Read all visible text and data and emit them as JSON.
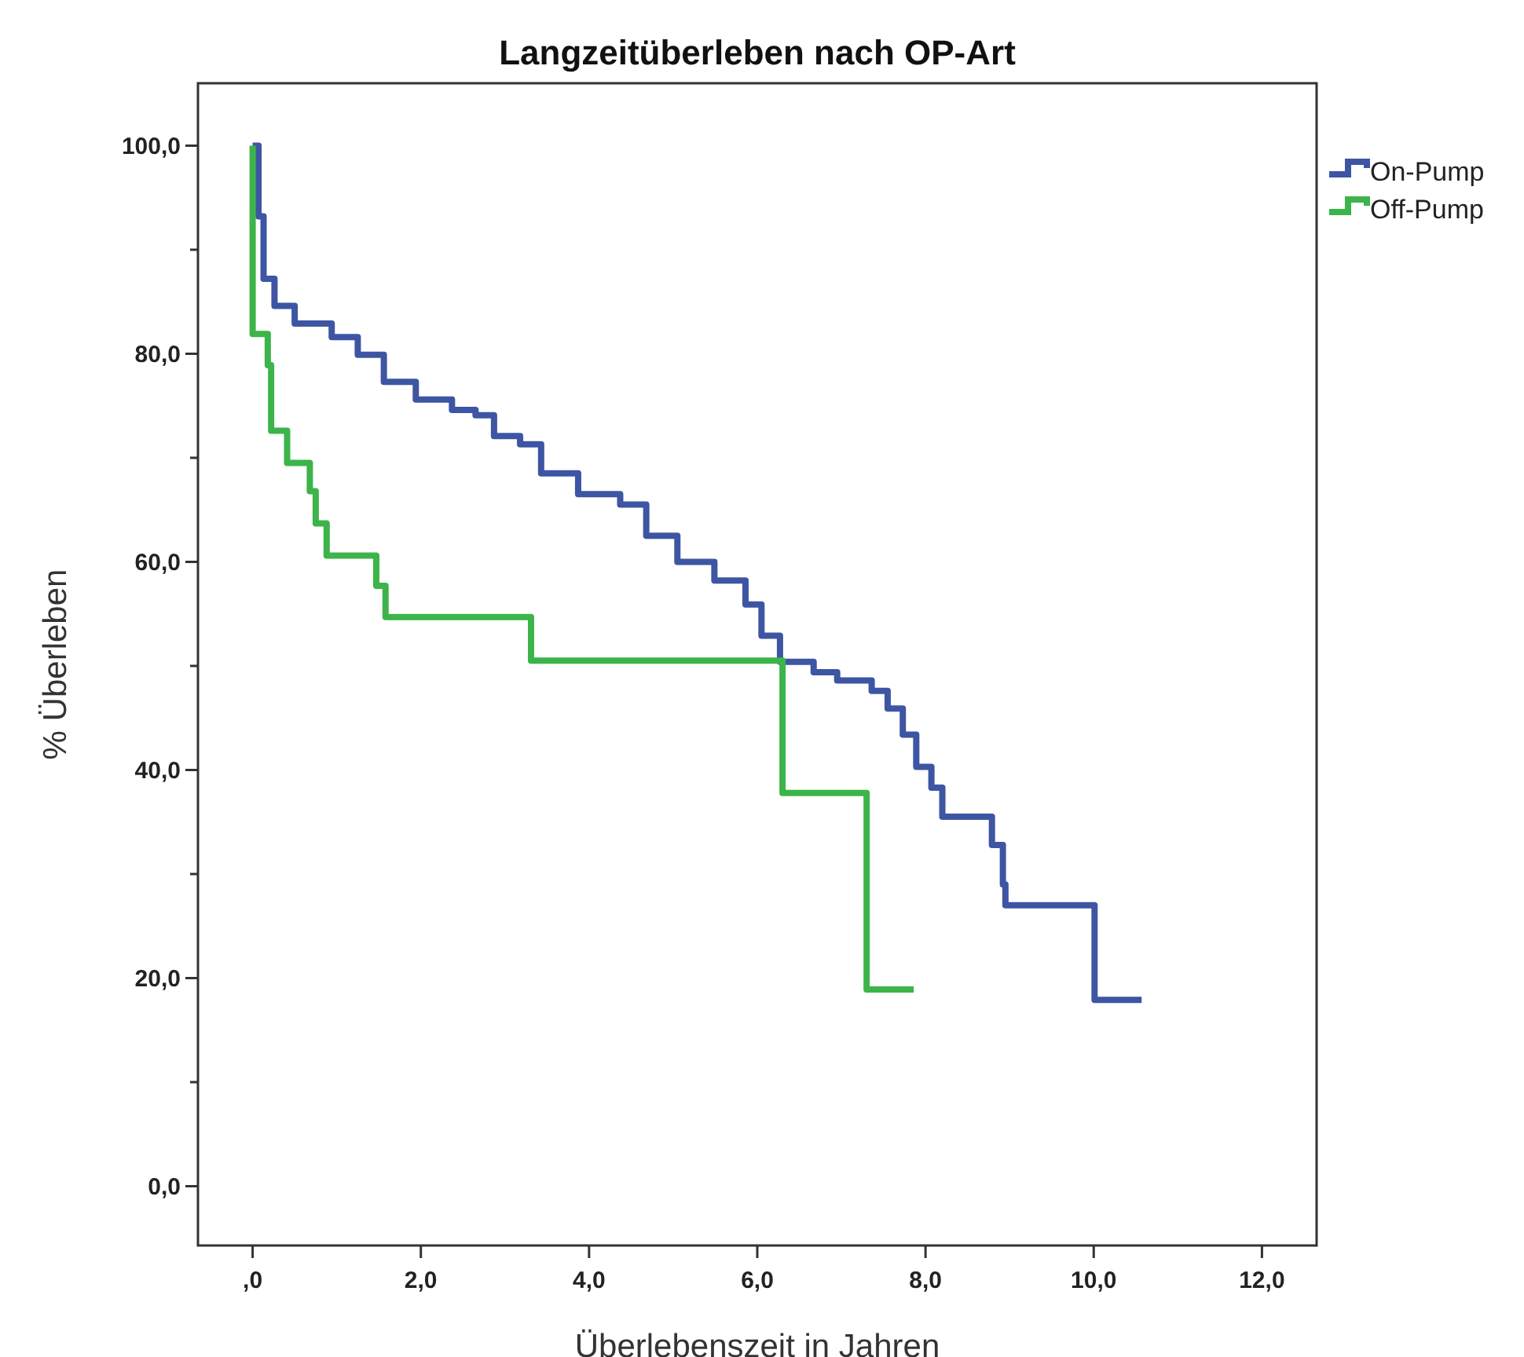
{
  "chart_data": {
    "type": "step",
    "title": "Langzeitüberleben nach OP-Art",
    "xlabel": "Überlebenszeit in Jahren",
    "ylabel": "% Überleben",
    "xlim": [
      -0.65,
      12.65
    ],
    "ylim": [
      -5.7,
      106
    ],
    "xticks": [
      {
        "value": 0,
        "label": ",0"
      },
      {
        "value": 2,
        "label": "2,0"
      },
      {
        "value": 4,
        "label": "4,0"
      },
      {
        "value": 6,
        "label": "6,0"
      },
      {
        "value": 8,
        "label": "8,0"
      },
      {
        "value": 10,
        "label": "10,0"
      },
      {
        "value": 12,
        "label": "12,0"
      }
    ],
    "yticks": [
      {
        "value": 0,
        "label": "0,0"
      },
      {
        "value": 10,
        "label": null
      },
      {
        "value": 20,
        "label": "20,0"
      },
      {
        "value": 30,
        "label": null
      },
      {
        "value": 40,
        "label": "40,0"
      },
      {
        "value": 50,
        "label": null
      },
      {
        "value": 60,
        "label": "60,0"
      },
      {
        "value": 70,
        "label": null
      },
      {
        "value": 80,
        "label": "80,0"
      },
      {
        "value": 90,
        "label": null
      },
      {
        "value": 100,
        "label": "100,0"
      }
    ],
    "legend": "top right",
    "grid": false,
    "series": [
      {
        "name": "On-Pump",
        "color": "#3d55a3",
        "x": [
          0,
          0.02,
          0.07,
          0.13,
          0.26,
          0.5,
          0.94,
          1.25,
          1.56,
          1.94,
          2.37,
          2.65,
          2.87,
          3.18,
          3.43,
          3.87,
          4.37,
          4.68,
          5.05,
          5.49,
          5.86,
          6.05,
          6.27,
          6.67,
          6.95,
          7.36,
          7.55,
          7.73,
          7.89,
          8.07,
          8.2,
          8.79,
          8.92,
          8.95,
          10.01,
          10.57
        ],
        "values": [
          100,
          100,
          93.2,
          87.2,
          84.6,
          82.9,
          81.6,
          79.9,
          77.3,
          75.6,
          74.6,
          74.1,
          72.1,
          71.3,
          68.5,
          66.5,
          65.5,
          62.5,
          60,
          58.2,
          55.9,
          52.9,
          50.4,
          49.4,
          48.6,
          47.6,
          45.9,
          43.4,
          40.3,
          38.3,
          35.5,
          32.8,
          29,
          27,
          17.9,
          17.9
        ]
      },
      {
        "name": "Off-Pump",
        "color": "#3cb44a",
        "x": [
          0,
          0,
          0.18,
          0.22,
          0.41,
          0.68,
          0.75,
          0.88,
          1.47,
          1.58,
          3.31,
          6.3,
          7.3,
          7.86
        ],
        "values": [
          100,
          81.9,
          78.9,
          72.6,
          69.5,
          66.8,
          63.7,
          60.6,
          57.7,
          54.7,
          50.5,
          37.8,
          18.9,
          18.9
        ]
      }
    ]
  }
}
